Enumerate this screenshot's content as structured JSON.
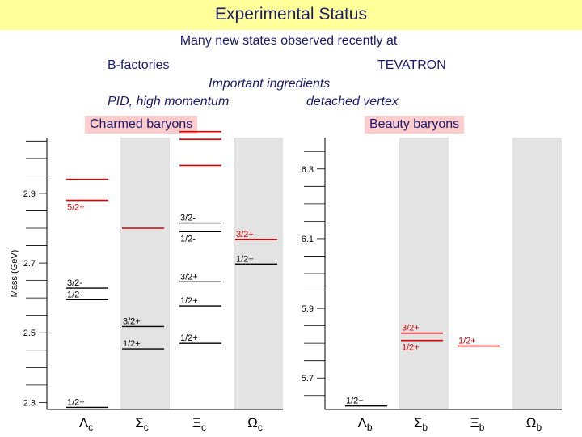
{
  "title": "Experimental Status",
  "subtitle": "Many new states observed recently at",
  "left_source": "B-factories",
  "right_source": "TEVATRON",
  "ingredients": "Important ingredients",
  "ingredient_left": "PID, high momentum",
  "ingredient_right": "detached vertex",
  "colors": {
    "observed": "#000000",
    "recent": "#dd0000",
    "column_shade": "#e3e3e3",
    "label_box": "#ffcccc",
    "text": "#1a1a6e"
  },
  "chart_data": [
    {
      "type": "diagram",
      "label": "Charmed baryons",
      "ylabel": "Mass (GeV)",
      "ylim": [
        2.28,
        3.06
      ],
      "yticks": [
        2.3,
        2.5,
        2.7,
        2.9
      ],
      "ytick_labels": [
        "2.3",
        "2.5",
        "2.7",
        "2.9"
      ],
      "columns": [
        {
          "name": "Λc",
          "sym": "Λ",
          "sub": "c",
          "shaded": false
        },
        {
          "name": "Σc",
          "sym": "Σ",
          "sub": "c",
          "shaded": true
        },
        {
          "name": "Ξc",
          "sym": "Ξ",
          "sub": "c",
          "shaded": false
        },
        {
          "name": "Ωc",
          "sym": "Ω",
          "sub": "c",
          "shaded": true
        }
      ],
      "levels": [
        {
          "col": 0,
          "mass": 2.286,
          "label": "1/2+",
          "label_pos": "above",
          "recent": false
        },
        {
          "col": 0,
          "mass": 2.595,
          "label": "1/2-",
          "label_pos": "above",
          "recent": false
        },
        {
          "col": 0,
          "mass": 2.628,
          "label": "3/2-",
          "label_pos": "above",
          "recent": false
        },
        {
          "col": 0,
          "mass": 2.88,
          "label": "5/2+",
          "label_pos": "below",
          "recent": true
        },
        {
          "col": 0,
          "mass": 2.94,
          "label": "",
          "label_pos": "above",
          "recent": true
        },
        {
          "col": 1,
          "mass": 2.454,
          "label": "1/2+",
          "label_pos": "above",
          "recent": false
        },
        {
          "col": 1,
          "mass": 2.518,
          "label": "3/2+",
          "label_pos": "above",
          "recent": false
        },
        {
          "col": 1,
          "mass": 2.8,
          "label": "",
          "label_pos": "above",
          "recent": true
        },
        {
          "col": 2,
          "mass": 2.47,
          "label": "1/2+",
          "label_pos": "above",
          "recent": false
        },
        {
          "col": 2,
          "mass": 2.577,
          "label": "1/2+",
          "label_pos": "above",
          "recent": false
        },
        {
          "col": 2,
          "mass": 2.646,
          "label": "3/2+",
          "label_pos": "above",
          "recent": false
        },
        {
          "col": 2,
          "mass": 2.79,
          "label": "1/2-",
          "label_pos": "below",
          "recent": false
        },
        {
          "col": 2,
          "mass": 2.815,
          "label": "3/2-",
          "label_pos": "above",
          "recent": false
        },
        {
          "col": 2,
          "mass": 2.98,
          "label": "",
          "label_pos": "above",
          "recent": true
        },
        {
          "col": 2,
          "mass": 3.055,
          "label": "",
          "label_pos": "above",
          "recent": true
        },
        {
          "col": 2,
          "mass": 3.077,
          "label": "",
          "label_pos": "above",
          "recent": true
        },
        {
          "col": 3,
          "mass": 2.697,
          "label": "1/2+",
          "label_pos": "above",
          "recent": false
        },
        {
          "col": 3,
          "mass": 2.768,
          "label": "3/2+",
          "label_pos": "above",
          "recent": true
        }
      ]
    },
    {
      "type": "diagram",
      "label": "Beauty baryons",
      "ylabel": "",
      "ylim": [
        5.61,
        6.39
      ],
      "yticks": [
        5.7,
        5.9,
        6.1,
        6.3
      ],
      "ytick_labels": [
        "5.7",
        "5.9",
        "6.1",
        "6.3"
      ],
      "columns": [
        {
          "name": "Λb",
          "sym": "Λ",
          "sub": "b",
          "shaded": false
        },
        {
          "name": "Σb",
          "sym": "Σ",
          "sub": "b",
          "shaded": true
        },
        {
          "name": "Ξb",
          "sym": "Ξ",
          "sub": "b",
          "shaded": false
        },
        {
          "name": "Ωb",
          "sym": "Ω",
          "sub": "b",
          "shaded": true
        }
      ],
      "levels": [
        {
          "col": 0,
          "mass": 5.62,
          "label": "1/2+",
          "label_pos": "above",
          "recent": false
        },
        {
          "col": 1,
          "mass": 5.808,
          "label": "1/2+",
          "label_pos": "below",
          "recent": true
        },
        {
          "col": 1,
          "mass": 5.829,
          "label": "3/2+",
          "label_pos": "above",
          "recent": true
        },
        {
          "col": 2,
          "mass": 5.792,
          "label": "1/2+",
          "label_pos": "above",
          "recent": true
        }
      ]
    }
  ]
}
